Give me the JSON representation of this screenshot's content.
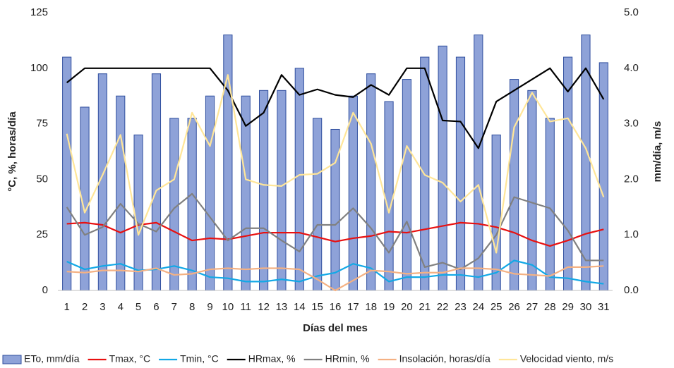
{
  "chart_data": {
    "type": "bar",
    "x_label": "Días del mes",
    "y_label": "°C, %, horas/día",
    "y2_label": "mm/día, m/s",
    "categories": [
      "1",
      "2",
      "3",
      "4",
      "5",
      "6",
      "7",
      "8",
      "9",
      "10",
      "11",
      "12",
      "13",
      "14",
      "15",
      "16",
      "17",
      "18",
      "19",
      "20",
      "21",
      "22",
      "23",
      "24",
      "25",
      "26",
      "27",
      "28",
      "29",
      "30",
      "31"
    ],
    "ylim": [
      0,
      125
    ],
    "yticks": [
      0,
      25,
      50,
      75,
      100,
      125
    ],
    "y2lim": [
      0,
      5
    ],
    "y2ticks": [
      {
        "value": 0,
        "label": "0.0"
      },
      {
        "value": 1,
        "label": "1.0"
      },
      {
        "value": 2,
        "label": "2.0"
      },
      {
        "value": 3,
        "label": "3.0"
      },
      {
        "value": 4,
        "label": "4.0"
      },
      {
        "value": 5,
        "label": "5.0"
      }
    ],
    "legend": "bottom",
    "series": [
      {
        "name": "ETo, mm/día",
        "type": "bar",
        "axis": "y2",
        "color": "#8ea2d8",
        "values": [
          4.2,
          3.3,
          3.9,
          3.5,
          2.8,
          3.9,
          3.1,
          3.1,
          3.5,
          4.6,
          3.5,
          3.6,
          3.6,
          4.0,
          3.1,
          2.9,
          3.5,
          3.9,
          3.4,
          3.8,
          4.2,
          4.4,
          4.2,
          4.6,
          2.8,
          3.8,
          3.6,
          3.1,
          4.2,
          4.6,
          4.1
        ]
      },
      {
        "name": "Tmax, °C",
        "type": "line",
        "color": "#e81010",
        "values": [
          30,
          30.5,
          29.5,
          26,
          29.5,
          30.5,
          26.5,
          22.5,
          23.5,
          23,
          24.5,
          26,
          26,
          26,
          24,
          22,
          23.5,
          24.5,
          26.5,
          26,
          27.5,
          29,
          30.5,
          30,
          28.5,
          26,
          22.5,
          20,
          22.5,
          25.5,
          27.5
        ]
      },
      {
        "name": "Tmin, °C",
        "type": "line",
        "color": "#12a8e6",
        "values": [
          13,
          9.5,
          11,
          12,
          9,
          9.5,
          11,
          9,
          6,
          5.5,
          4,
          4,
          5,
          4,
          6.5,
          8,
          12,
          10,
          4,
          6,
          6,
          7,
          7,
          6,
          8,
          13.5,
          11.5,
          6,
          5.5,
          4,
          3
        ]
      },
      {
        "name": "HRmax, %",
        "type": "line",
        "color": "#000000",
        "values": [
          93.5,
          100,
          100,
          100,
          100,
          100,
          100,
          100,
          100,
          90,
          74,
          80,
          97,
          88,
          90.5,
          88,
          87,
          92.5,
          88,
          100,
          100,
          76.5,
          76,
          64,
          85,
          90,
          95,
          100,
          89.5,
          100,
          86
        ]
      },
      {
        "name": "HRmin, %",
        "type": "line",
        "color": "#808080",
        "values": [
          37.5,
          25,
          28.5,
          39,
          30,
          26.5,
          37,
          43.5,
          33,
          22.5,
          28,
          28,
          22.5,
          17.5,
          29.5,
          29.5,
          37,
          28,
          17,
          31,
          10.5,
          12.5,
          9.5,
          14.5,
          25,
          42,
          39.5,
          37,
          27,
          13.5,
          13.5
        ]
      },
      {
        "name": "Insolación, horas/día",
        "type": "line",
        "color": "#f4b183",
        "values": [
          8.5,
          8,
          9,
          9,
          8.5,
          10,
          7,
          7.5,
          9.5,
          10,
          9.5,
          10,
          10,
          9.5,
          5,
          0,
          4.5,
          9,
          8.5,
          7.5,
          8,
          8,
          10,
          10,
          9.5,
          7.5,
          7,
          6.5,
          10.5,
          10.5,
          11
        ]
      },
      {
        "name": "Velocidad viento, m/s",
        "type": "line",
        "color": "#ffe699",
        "values": [
          70.5,
          35,
          52,
          70,
          25,
          45,
          50,
          80,
          65,
          97,
          50,
          47.5,
          47,
          52,
          52.5,
          57.5,
          80,
          66,
          35,
          65,
          52,
          48.5,
          40,
          47.5,
          17,
          73.5,
          89,
          76,
          77.5,
          64,
          42
        ]
      }
    ]
  }
}
